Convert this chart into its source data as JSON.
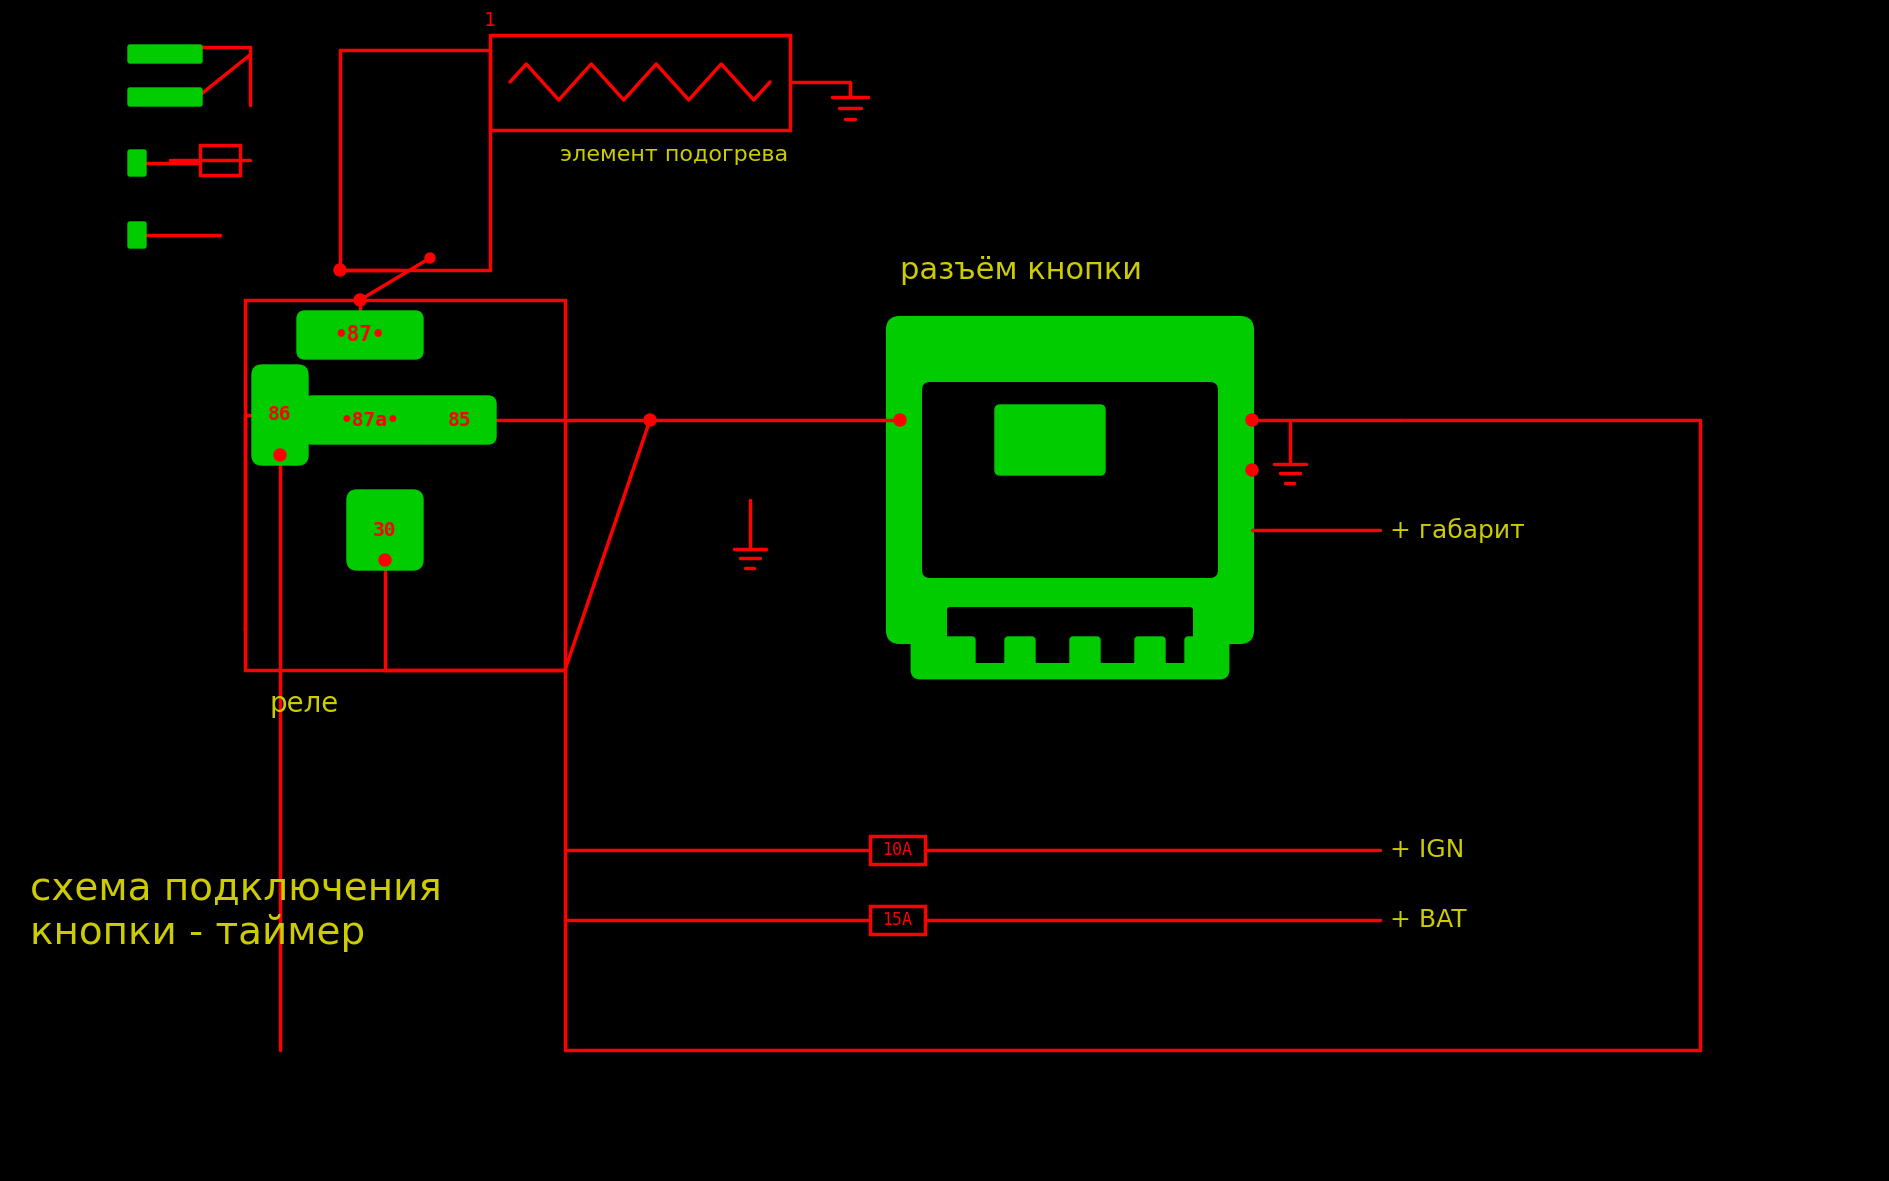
{
  "bg_color": "#000000",
  "red": "#FF0000",
  "green": "#00CC00",
  "yellow": "#CCCC00",
  "title_text": "схема подключения\nкнопки - таймер",
  "title_color": "#CCCC00",
  "label_element": "элемент подогрева",
  "label_razem": "разъём кнопки",
  "label_rele": "реле",
  "label_gabarit": "+ габарит",
  "label_ign": "+ IGN",
  "label_bat": "+ BAT",
  "label_1": "1",
  "label_10a": "10А",
  "label_15a": "15А",
  "relay_pins": [
    "87",
    "87а",
    "85",
    "86",
    "30"
  ],
  "fig_width": 18.89,
  "fig_height": 11.81
}
